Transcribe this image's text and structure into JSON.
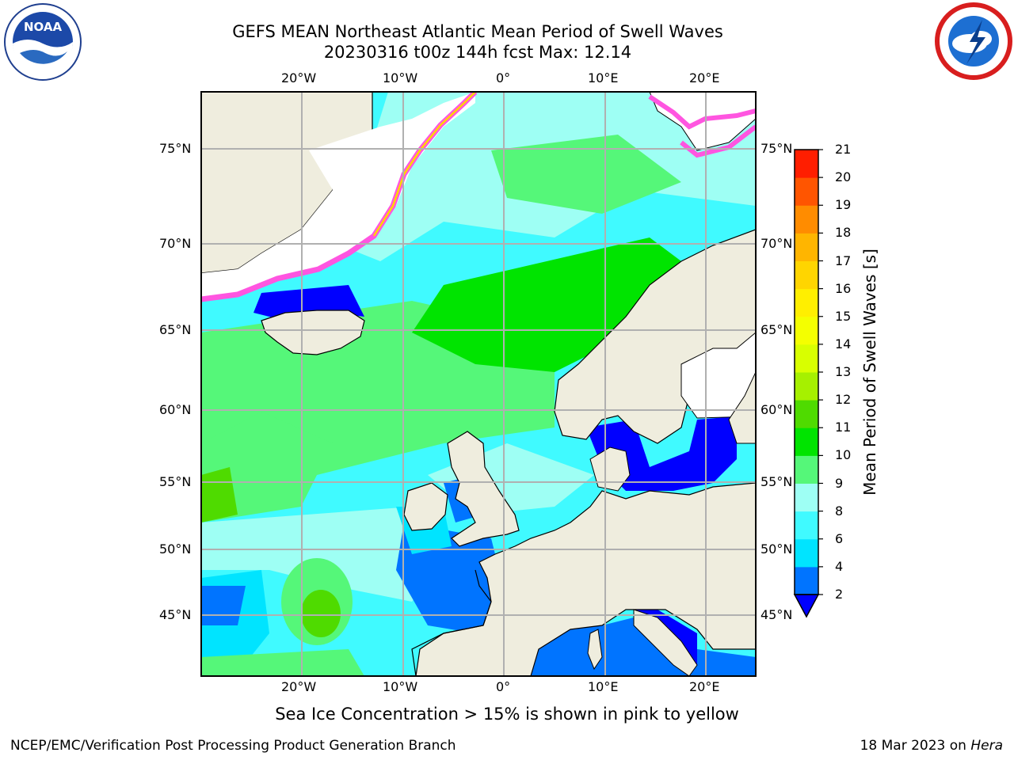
{
  "title": {
    "line1": "GEFS MEAN Northeast Atlantic Mean Period of Swell Waves",
    "line2": "20230316 t00z 144h fcst   Max: 12.14"
  },
  "map": {
    "lon_range": [
      -30,
      25
    ],
    "lat_range": [
      41,
      78
    ],
    "lon_ticks": [
      "20°W",
      "10°W",
      "0°",
      "10°E",
      "20°E"
    ],
    "lat_ticks": [
      "75°N",
      "70°N",
      "65°N",
      "60°N",
      "55°N",
      "50°N",
      "45°N"
    ],
    "colors": {
      "land": "#efedde",
      "ice": "#ffffff",
      "sea_ice_edge": "#ff55e0",
      "grid": "#b0b0b0"
    }
  },
  "colorbar": {
    "label": "Mean Period of Swell Waves [s]",
    "ticks": [
      "2",
      "4",
      "6",
      "8",
      "9",
      "10",
      "11",
      "12",
      "13",
      "14",
      "15",
      "16",
      "17",
      "18",
      "19",
      "20",
      "21"
    ],
    "colors": [
      "#0074ff",
      "#00e4ff",
      "#40faff",
      "#9efff4",
      "#55f779",
      "#00e400",
      "#4fdb00",
      "#a6f000",
      "#d8ff00",
      "#f4ff00",
      "#ffef00",
      "#ffd500",
      "#ffb500",
      "#ff8c00",
      "#ff5500",
      "#ff1e00"
    ],
    "under_color": "#0000ff"
  },
  "caption": "Sea Ice Concentration > 15% is shown in pink to yellow",
  "footer": {
    "left": "NCEP/EMC/Verification Post Processing Product Generation Branch",
    "date": "18 Mar 2023 on ",
    "machine": "Hera"
  },
  "logos": {
    "left": "noaa-logo",
    "right": "nws-logo",
    "noaa_text": "NOAA"
  }
}
